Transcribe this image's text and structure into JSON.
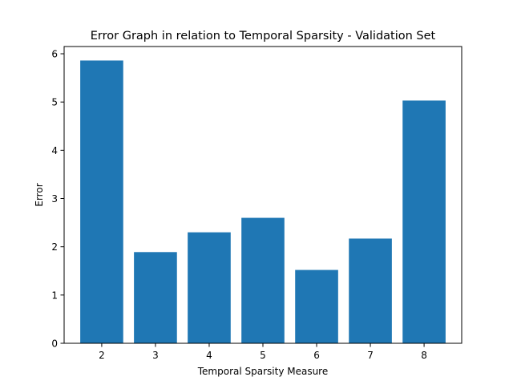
{
  "chart_data": {
    "type": "bar",
    "title": "Error Graph in relation to Temporal Sparsity - Validation Set",
    "xlabel": "Temporal Sparsity Measure",
    "ylabel": "Error",
    "categories": [
      "2",
      "3",
      "4",
      "5",
      "6",
      "7",
      "8"
    ],
    "values": [
      5.86,
      1.89,
      2.3,
      2.6,
      1.52,
      2.17,
      5.03
    ],
    "ylim": [
      0,
      6.15
    ],
    "yticks": [
      0,
      1,
      2,
      3,
      4,
      5,
      6
    ],
    "grid": false,
    "bar_color": "#1f77b4"
  }
}
